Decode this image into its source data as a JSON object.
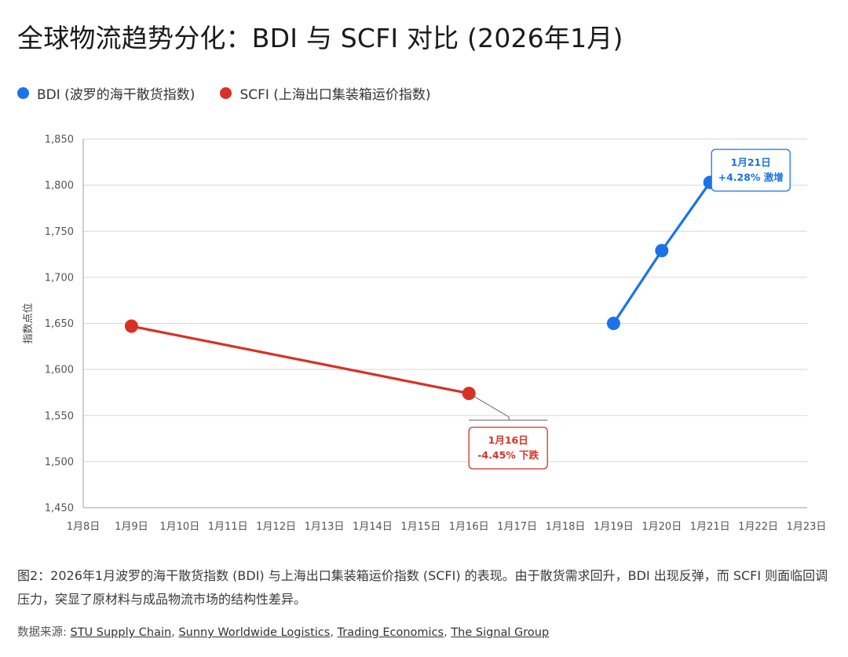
{
  "title": "全球物流趋势分化：BDI 与 SCFI 对比 (2026年1月)",
  "legend": [
    {
      "label": "BDI (波罗的海干散货指数)",
      "color": "#1a73e8"
    },
    {
      "label": "SCFI (上海出口集装箱运价指数)",
      "color": "#d93025"
    }
  ],
  "chart_data": {
    "type": "line",
    "title": "全球物流趋势分化：BDI 与 SCFI 对比 (2026年1月)",
    "xlabel": "",
    "ylabel": "指数点位",
    "categories": [
      "1月8日",
      "1月9日",
      "1月10日",
      "1月11日",
      "1月12日",
      "1月13日",
      "1月14日",
      "1月15日",
      "1月16日",
      "1月17日",
      "1月18日",
      "1月19日",
      "1月20日",
      "1月21日",
      "1月22日",
      "1月23日"
    ],
    "yticks": [
      "1,450",
      "1,500",
      "1,550",
      "1,600",
      "1,650",
      "1,700",
      "1,750",
      "1,800",
      "1,850"
    ],
    "ylim": [
      1450,
      1850
    ],
    "grid": true,
    "legend_position": "top-left",
    "series": [
      {
        "name": "BDI (波罗的海干散货指数)",
        "color": "#1a73e8",
        "points": [
          {
            "x": "1月19日",
            "y": 1650
          },
          {
            "x": "1月20日",
            "y": 1729
          },
          {
            "x": "1月21日",
            "y": 1803
          }
        ]
      },
      {
        "name": "SCFI (上海出口集装箱运价指数)",
        "color": "#d93025",
        "points": [
          {
            "x": "1月9日",
            "y": 1647
          },
          {
            "x": "1月16日",
            "y": 1574
          }
        ]
      }
    ],
    "annotations": [
      {
        "series": 0,
        "x": "1月21日",
        "line1": "1月21日",
        "line2": "+4.28% 激增",
        "color": "#1a73e8"
      },
      {
        "series": 1,
        "x": "1月16日",
        "line1": "1月16日",
        "line2": "-4.45% 下跌",
        "color": "#d93025"
      }
    ]
  },
  "caption": "图2：2026年1月波罗的海干散货指数 (BDI) 与上海出口集装箱运价指数 (SCFI) 的表现。由于散货需求回升，BDI 出现反弹，而 SCFI 则面临回调压力，突显了原材料与成品物流市场的结构性差异。",
  "source": {
    "prefix": "数据来源: ",
    "links": [
      "STU Supply Chain",
      "Sunny Worldwide Logistics",
      "Trading Economics",
      "The Signal Group"
    ]
  }
}
